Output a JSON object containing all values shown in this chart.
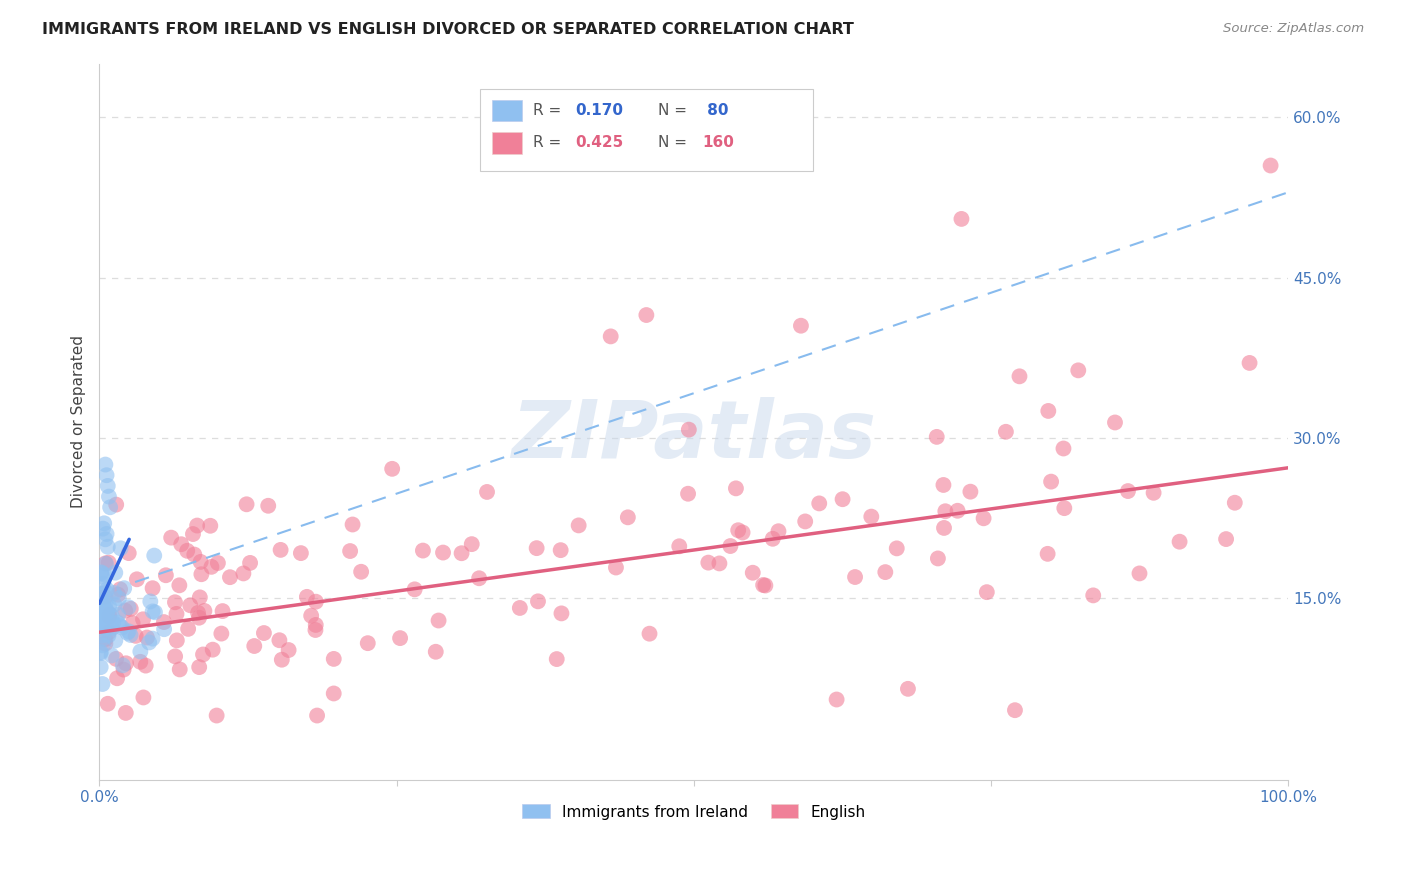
{
  "title": "IMMIGRANTS FROM IRELAND VS ENGLISH DIVORCED OR SEPARATED CORRELATION CHART",
  "source": "Source: ZipAtlas.com",
  "ylabel": "Divorced or Separated",
  "yticks_labels": [
    "15.0%",
    "30.0%",
    "45.0%",
    "60.0%"
  ],
  "ytick_values": [
    0.15,
    0.3,
    0.45,
    0.6
  ],
  "xlim": [
    0.0,
    1.0
  ],
  "ylim": [
    -0.02,
    0.65
  ],
  "watermark_text": "ZIPatlas",
  "legend_label1": "Immigrants from Ireland",
  "legend_label2": "English",
  "color_ireland": "#90C0F0",
  "color_english": "#F08098",
  "trendline_ireland_solid_color": "#3366DD",
  "trendline_ireland_dashed_color": "#88BBEE",
  "trendline_english_solid_color": "#E06080",
  "background": "#FFFFFF",
  "grid_color": "#DDDDDD",
  "ireland_trendline_solid": [
    [
      0.0,
      0.145
    ],
    [
      0.025,
      0.205
    ]
  ],
  "ireland_trendline_dashed": [
    [
      0.03,
      0.165
    ],
    [
      1.0,
      0.53
    ]
  ],
  "english_trendline": [
    [
      0.0,
      0.118
    ],
    [
      1.0,
      0.272
    ]
  ]
}
